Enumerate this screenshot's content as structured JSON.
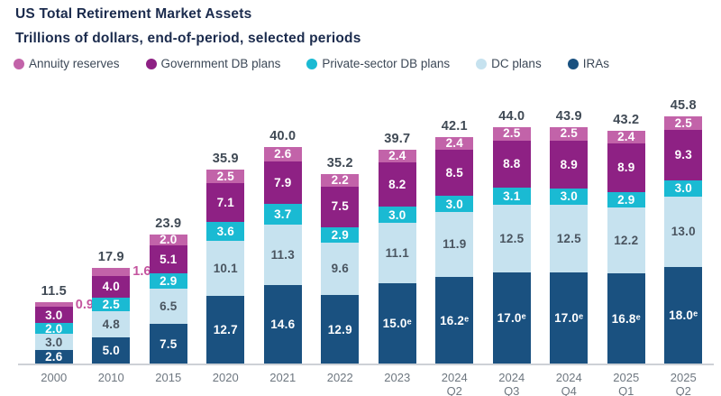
{
  "header": {
    "title": "US Total Retirement Market Assets",
    "subtitle": "Trillions of dollars, end-of-period, selected periods"
  },
  "legend": {
    "items": [
      {
        "label": "Annuity reserves",
        "color": "#C263A9"
      },
      {
        "label": "Government DB plans",
        "color": "#8E2184"
      },
      {
        "label": "Private-sector DB plans",
        "color": "#1ABAD3"
      },
      {
        "label": "DC plans",
        "color": "#C6E2EF"
      },
      {
        "label": "IRAs",
        "color": "#1A5180"
      }
    ]
  },
  "chart_data": {
    "type": "bar",
    "stacked": true,
    "title": "US Total Retirement Market Assets",
    "subtitle": "Trillions of dollars, end-of-period, selected periods",
    "unit": "trillions of dollars",
    "grid": false,
    "legend_position": "top",
    "categories": [
      "2000",
      "2010",
      "2015",
      "2020",
      "2021",
      "2022",
      "2023",
      "2024\nQ2",
      "2024\nQ3",
      "2024\nQ4",
      "2025\nQ1",
      "2025\nQ2"
    ],
    "totals": [
      "11.5",
      "17.9",
      "23.9",
      "35.9",
      "40.0",
      "35.2",
      "39.7",
      "42.1",
      "44.0",
      "43.9",
      "43.2",
      "45.8"
    ],
    "series": [
      {
        "name": "IRAs",
        "color": "#1A5180",
        "label_color": "#FFFFFF",
        "values": [
          2.6,
          5.0,
          7.5,
          12.7,
          14.6,
          12.9,
          15.0,
          16.2,
          17.0,
          17.0,
          16.8,
          18.0
        ],
        "labels": [
          "2.6",
          "5.0",
          "7.5",
          "12.7",
          "14.6",
          "12.9",
          "15.0ᵉ",
          "16.2ᵉ",
          "17.0ᵉ",
          "17.0ᵉ",
          "16.8ᵉ",
          "18.0ᵉ"
        ]
      },
      {
        "name": "DC plans",
        "color": "#C6E2EF",
        "label_color": "#4A5560",
        "values": [
          3.0,
          4.8,
          6.5,
          10.1,
          11.3,
          9.6,
          11.1,
          11.9,
          12.5,
          12.5,
          12.2,
          13.0
        ],
        "labels": [
          "3.0",
          "4.8",
          "6.5",
          "10.1",
          "11.3",
          "9.6",
          "11.1",
          "11.9",
          "12.5",
          "12.5",
          "12.2",
          "13.0"
        ]
      },
      {
        "name": "Private-sector DB plans",
        "color": "#1ABAD3",
        "label_color": "#FFFFFF",
        "values": [
          2.0,
          2.5,
          2.9,
          3.6,
          3.7,
          2.9,
          3.0,
          3.0,
          3.1,
          3.0,
          2.9,
          3.0
        ],
        "labels": [
          "2.0",
          "2.5",
          "2.9",
          "3.6",
          "3.7",
          "2.9",
          "3.0",
          "3.0",
          "3.1",
          "3.0",
          "2.9",
          "3.0"
        ]
      },
      {
        "name": "Government DB plans",
        "color": "#8E2184",
        "label_color": "#FFFFFF",
        "values": [
          3.0,
          4.0,
          5.1,
          7.1,
          7.9,
          7.5,
          8.2,
          8.5,
          8.8,
          8.9,
          8.9,
          9.3
        ],
        "labels": [
          "3.0",
          "4.0",
          "5.1",
          "7.1",
          "7.9",
          "7.5",
          "8.2",
          "8.5",
          "8.8",
          "8.9",
          "8.9",
          "9.3"
        ]
      },
      {
        "name": "Annuity reserves",
        "color": "#C263A9",
        "label_color": "#FFFFFF",
        "values": [
          0.9,
          1.6,
          2.0,
          2.5,
          2.6,
          2.2,
          2.4,
          2.4,
          2.5,
          2.5,
          2.4,
          2.5
        ],
        "labels": [
          "0.9",
          "1.6",
          "2.0",
          "2.5",
          "2.6",
          "2.2",
          "2.4",
          "2.4",
          "2.5",
          "2.5",
          "2.4",
          "2.5"
        ]
      }
    ]
  }
}
